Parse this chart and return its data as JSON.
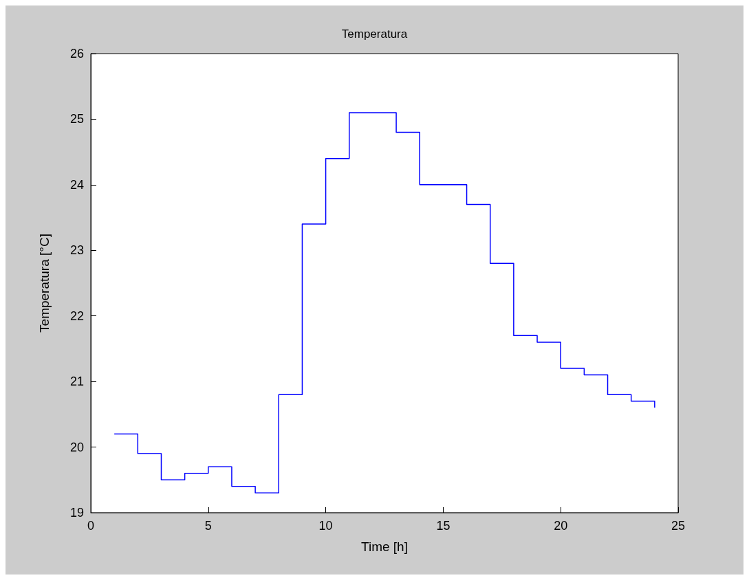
{
  "chart_data": {
    "type": "step",
    "title": "Temperatura",
    "xlabel": "Time [h]",
    "ylabel": "Temperatura [°C]",
    "x": [
      1,
      2,
      3,
      4,
      5,
      6,
      7,
      8,
      9,
      10,
      11,
      12,
      13,
      14,
      15,
      16,
      17,
      18,
      19,
      20,
      21,
      22,
      23,
      24
    ],
    "series": [
      {
        "color": "#0000ff",
        "values": [
          20.2,
          19.9,
          19.5,
          19.6,
          19.7,
          19.4,
          19.3,
          20.8,
          23.4,
          24.4,
          25.1,
          25.1,
          24.8,
          24.0,
          24.0,
          23.7,
          22.8,
          21.7,
          21.6,
          21.2,
          21.1,
          20.8,
          20.7,
          20.6
        ]
      }
    ],
    "xlim": [
      0,
      25
    ],
    "xticks": [
      0,
      5,
      10,
      15,
      20,
      25
    ],
    "ylim": [
      19,
      26
    ],
    "yticks": [
      19,
      20,
      21,
      22,
      23,
      24,
      25,
      26
    ],
    "grid": false,
    "marker": "none",
    "line_style": "solid"
  }
}
